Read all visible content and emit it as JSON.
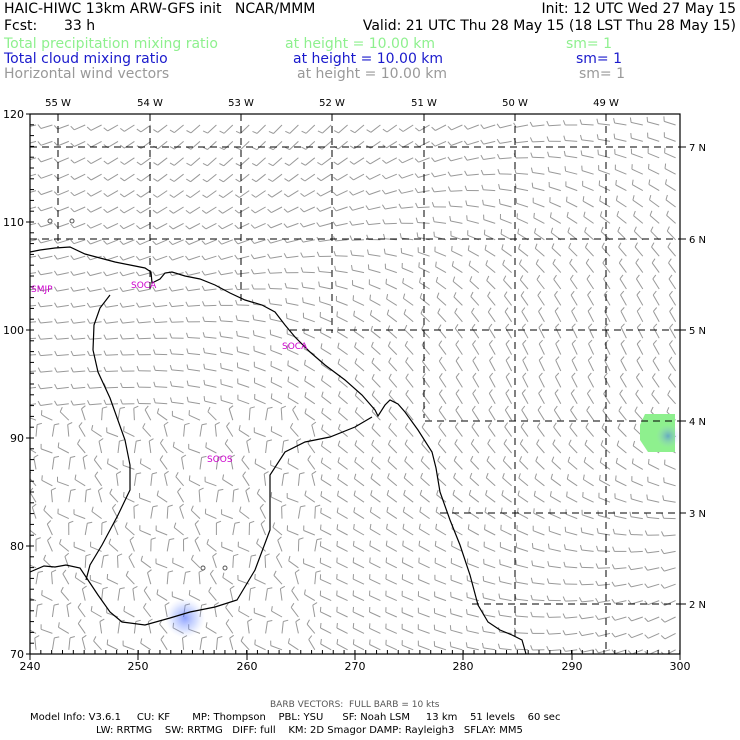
{
  "header": {
    "title": "HAIC-HIWC 13km ARW-GFS init   NCAR/MMM",
    "init": "Init: 12 UTC Wed 27 May 15",
    "fcst_label": "Fcst:",
    "fcst_value": "33 h",
    "valid": "Valid: 21 UTC Thu 28 May 15 (18 LST Thu 28 May 15)",
    "fields": [
      {
        "name": "Total precipitation mixing ratio",
        "level": "at height = 10.00 km",
        "sm": "sm= 1",
        "color": "#8ef08e"
      },
      {
        "name": "Total cloud mixing ratio",
        "level": "at height = 10.00 km",
        "sm": "sm= 1",
        "color": "#1a1acc"
      },
      {
        "name": "Horizontal wind vectors",
        "level": "at height = 10.00 km",
        "sm": "sm= 1",
        "color": "#999999"
      }
    ]
  },
  "map": {
    "lon_labels": [
      "55 W",
      "54 W",
      "53 W",
      "52 W",
      "51 W",
      "50 W",
      "49 W"
    ],
    "lat_labels": [
      "7 N",
      "6 N",
      "5 N",
      "4 N",
      "3 N",
      "2 N"
    ],
    "y_ticks": [
      "120",
      "110",
      "100",
      "90",
      "80",
      "70"
    ],
    "x_ticks": [
      "240",
      "250",
      "260",
      "270",
      "280",
      "290",
      "300"
    ],
    "stations": [
      "SMJP",
      "SOCA",
      "SOCA",
      "SOOS"
    ],
    "colors": {
      "coast": "#000000",
      "grid": "#000000",
      "barbs": "#999999",
      "stations": "#cc00cc",
      "precip": "#8ef08e",
      "cloud": "#3355ff"
    }
  },
  "footer": {
    "barb_note": "BARB VECTORS:  FULL BARB = 10 kts",
    "line1": "Model Info: V3.6.1     CU: KF       MP: Thompson    PBL: YSU      SF: Noah LSM     13 km    51 levels    60 sec",
    "line2": "LW: RRTMG    SW: RRTMG   DIFF: full    KM: 2D Smagor DAMP: Rayleigh3   SFLAY: MM5"
  }
}
